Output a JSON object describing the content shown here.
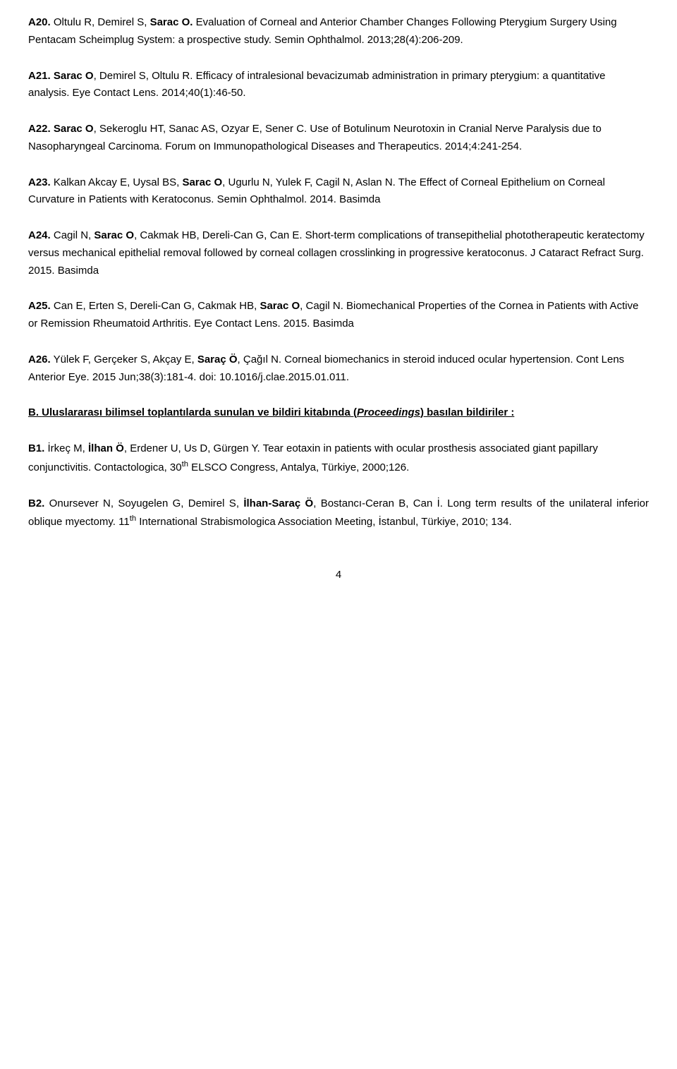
{
  "entries": {
    "a20": {
      "code": "A20.",
      "authors_pre": " Oltulu R, Demirel S, ",
      "bold_author": "Sarac O.",
      "rest": " Evaluation of Corneal and Anterior Chamber Changes Following Pterygium Surgery Using Pentacam Scheimplug System: a prospective study. Semin Ophthalmol. 2013;28(4):206-209."
    },
    "a21": {
      "code": "A21.",
      "bold_author": " Sarac O",
      "rest": ", Demirel S, Oltulu R. Efficacy of intralesional bevacizumab administration in primary pterygium: a quantitative analysis. Eye Contact Lens. 2014;40(1):46-50."
    },
    "a22": {
      "code": "A22.",
      "bold_author": " Sarac O",
      "rest": ", Sekeroglu HT, Sanac AS, Ozyar E, Sener C. Use of Botulinum Neurotoxin in Cranial Nerve Paralysis due to Nasopharyngeal Carcinoma. Forum on Immunopathological Diseases and Therapeutics. 2014;4:241-254."
    },
    "a23": {
      "code": "A23.",
      "pre": " Kalkan Akcay E, Uysal BS, ",
      "bold_author": "Sarac O",
      "rest": ", Ugurlu N, Yulek F, Cagil N, Aslan N. The Effect of Corneal Epithelium on Corneal Curvature in Patients with Keratoconus. Semin Ophthalmol. 2014. Basimda"
    },
    "a24": {
      "code": "A24.",
      "pre": " Cagil N, ",
      "bold_author": "Sarac O",
      "rest": ", Cakmak HB, Dereli-Can G, Can E. Short-term complications of transepithelial phototherapeutic keratectomy versus mechanical epithelial removal followed by corneal collagen crosslinking in progressive keratoconus. J Cataract Refract Surg. 2015. Basimda"
    },
    "a25": {
      "code": "A25.",
      "pre": " Can E, Erten S, Dereli-Can G, Cakmak HB, ",
      "bold_author": "Sarac O",
      "rest": ", Cagil N. Biomechanical Properties of the Cornea in Patients with Active or Remission Rheumatoid Arthritis. Eye Contact Lens. 2015. Basimda"
    },
    "a26": {
      "code": "A26.",
      "pre": " Yülek F, Gerçeker S, Akçay E, ",
      "bold_author": "Saraç Ö",
      "rest": ", Çağıl N. Corneal biomechanics in steroid induced ocular hypertension. Cont Lens Anterior Eye. 2015 Jun;38(3):181-4. doi: 10.1016/j.clae.2015.01.011."
    }
  },
  "section_b": {
    "prefix": "B. ",
    "title_part1": "Uluslararası bilimsel toplantılarda sunulan ve bildiri kitabında (",
    "title_italic": "Proceedings",
    "title_part2": ") basılan bildiriler :"
  },
  "b_entries": {
    "b1": {
      "code": "B1.",
      "pre": " İrkeç M, ",
      "bold_author": "İlhan Ö",
      "mid": ", Erdener U, Us D, Gürgen Y. Tear eotaxin in patients with ocular prosthesis associated giant papillary conjunctivitis. Contactologica, 30",
      "sup": "th",
      "post": " ELSCO Congress, Antalya, Türkiye, 2000;126."
    },
    "b2": {
      "code": "B2.",
      "pre": " Onursever N, Soyugelen G, Demirel S, ",
      "bold_author": "İlhan-Saraç Ö",
      "mid": ", Bostancı-Ceran B, Can İ. Long term results of the unilateral inferior oblique myectomy. 11",
      "sup": "th",
      "post": " International Strabismologica Association Meeting, İstanbul, Türkiye, 2010; 134."
    }
  },
  "page_number": "4"
}
